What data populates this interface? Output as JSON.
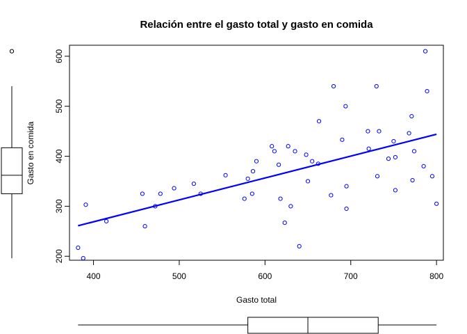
{
  "chart_data": {
    "type": "scatter",
    "title": "Relación entre el gasto total y gasto en comida",
    "xlabel": "Gasto total",
    "ylabel": "Gasto en comida",
    "xlim": [
      372,
      808
    ],
    "ylim": [
      192,
      622
    ],
    "xticks": [
      400,
      500,
      600,
      700,
      800
    ],
    "yticks": [
      200,
      300,
      400,
      500,
      600
    ],
    "grid": false,
    "point_color": "#0000ff",
    "line_color": "#0000ff",
    "points": [
      {
        "x": 382,
        "y": 217
      },
      {
        "x": 388,
        "y": 196
      },
      {
        "x": 391,
        "y": 303
      },
      {
        "x": 415,
        "y": 270
      },
      {
        "x": 457,
        "y": 325
      },
      {
        "x": 460,
        "y": 260
      },
      {
        "x": 472,
        "y": 300
      },
      {
        "x": 478,
        "y": 325
      },
      {
        "x": 494,
        "y": 336
      },
      {
        "x": 517,
        "y": 345
      },
      {
        "x": 525,
        "y": 325
      },
      {
        "x": 554,
        "y": 362
      },
      {
        "x": 576,
        "y": 315
      },
      {
        "x": 580,
        "y": 355
      },
      {
        "x": 585,
        "y": 325
      },
      {
        "x": 586,
        "y": 370
      },
      {
        "x": 590,
        "y": 390
      },
      {
        "x": 608,
        "y": 420
      },
      {
        "x": 611,
        "y": 410
      },
      {
        "x": 616,
        "y": 383
      },
      {
        "x": 618,
        "y": 315
      },
      {
        "x": 623,
        "y": 267
      },
      {
        "x": 627,
        "y": 420
      },
      {
        "x": 630,
        "y": 300
      },
      {
        "x": 635,
        "y": 410
      },
      {
        "x": 640,
        "y": 220
      },
      {
        "x": 648,
        "y": 403
      },
      {
        "x": 650,
        "y": 350
      },
      {
        "x": 655,
        "y": 390
      },
      {
        "x": 662,
        "y": 385
      },
      {
        "x": 663,
        "y": 470
      },
      {
        "x": 677,
        "y": 322
      },
      {
        "x": 680,
        "y": 540
      },
      {
        "x": 690,
        "y": 433
      },
      {
        "x": 694,
        "y": 500
      },
      {
        "x": 695,
        "y": 340
      },
      {
        "x": 695,
        "y": 295
      },
      {
        "x": 720,
        "y": 450
      },
      {
        "x": 721,
        "y": 415
      },
      {
        "x": 730,
        "y": 540
      },
      {
        "x": 731,
        "y": 360
      },
      {
        "x": 733,
        "y": 450
      },
      {
        "x": 744,
        "y": 395
      },
      {
        "x": 750,
        "y": 430
      },
      {
        "x": 752,
        "y": 332
      },
      {
        "x": 752,
        "y": 398
      },
      {
        "x": 768,
        "y": 446
      },
      {
        "x": 771,
        "y": 480
      },
      {
        "x": 772,
        "y": 352
      },
      {
        "x": 774,
        "y": 410
      },
      {
        "x": 785,
        "y": 380
      },
      {
        "x": 787,
        "y": 610
      },
      {
        "x": 789,
        "y": 530
      },
      {
        "x": 795,
        "y": 360
      },
      {
        "x": 800,
        "y": 305
      }
    ],
    "regression_line": {
      "x": [
        382,
        800
      ],
      "y": [
        261,
        444
      ]
    },
    "boxplot_y": {
      "whisker_low": 196,
      "q1": 325,
      "median": 362,
      "q3": 417,
      "whisker_high": 540,
      "outliers": [
        610
      ]
    },
    "boxplot_x": {
      "whisker_low": 382,
      "q1": 580,
      "median": 650,
      "q3": 732,
      "whisker_high": 800
    }
  }
}
